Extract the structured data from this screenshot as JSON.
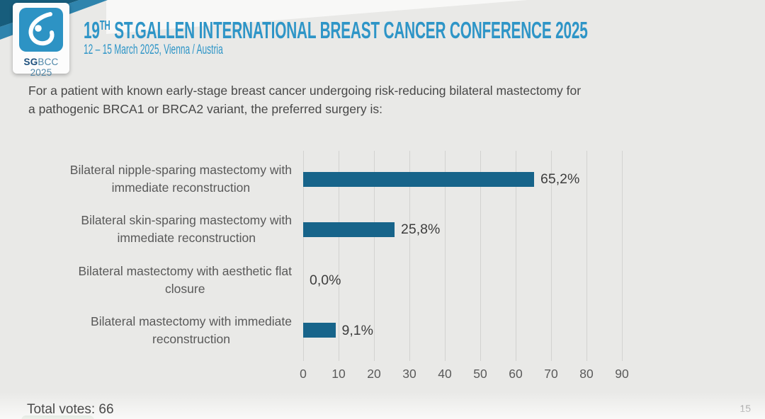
{
  "header": {
    "title_num": "19",
    "title_sup": "TH",
    "title_rest": " ST.GALLEN INTERNATIONAL BREAST CANCER CONFERENCE 2025",
    "subtitle": "12 – 15 March 2025, Vienna / Austria",
    "logo": {
      "sg": "SG",
      "rest": "BCC 2025"
    }
  },
  "question": {
    "line1": "For a patient with known early-stage breast cancer undergoing risk-reducing bilateral mastectomy for",
    "line2": "a pathogenic BRCA1 or BRCA2 variant, the preferred surgery is:"
  },
  "chart_data": {
    "type": "bar",
    "orientation": "horizontal",
    "title": "",
    "categories": [
      [
        "Bilateral nipple-sparing mastectomy with",
        "immediate reconstruction"
      ],
      [
        "Bilateral skin-sparing mastectomy with",
        "immediate reconstruction"
      ],
      [
        "Bilateral mastectomy with aesthetic flat",
        "closure"
      ],
      [
        "Bilateral mastectomy with immediate",
        "reconstruction"
      ]
    ],
    "values": [
      65.2,
      25.8,
      0.0,
      9.1
    ],
    "value_labels": [
      "65,2%",
      "25,8%",
      "0,0%",
      "9,1%"
    ],
    "x_ticks": [
      0,
      10,
      20,
      30,
      40,
      50,
      60,
      70,
      80,
      90
    ],
    "xlim": [
      0,
      95
    ],
    "grid": true,
    "legend": false,
    "bar_color": "#17648a"
  },
  "footer": {
    "total_votes": "Total votes: 66",
    "page_number": "15"
  },
  "colors": {
    "accent_blue": "#2e95c7",
    "bar_teal": "#17648a",
    "band_dark_teal": "#175d7c",
    "band_blue": "#2f84ad",
    "logo_sg_navy": "#1c4f7c",
    "logo_rest_blue": "#4f87a8",
    "highlight_green": "#a9bfa7"
  }
}
